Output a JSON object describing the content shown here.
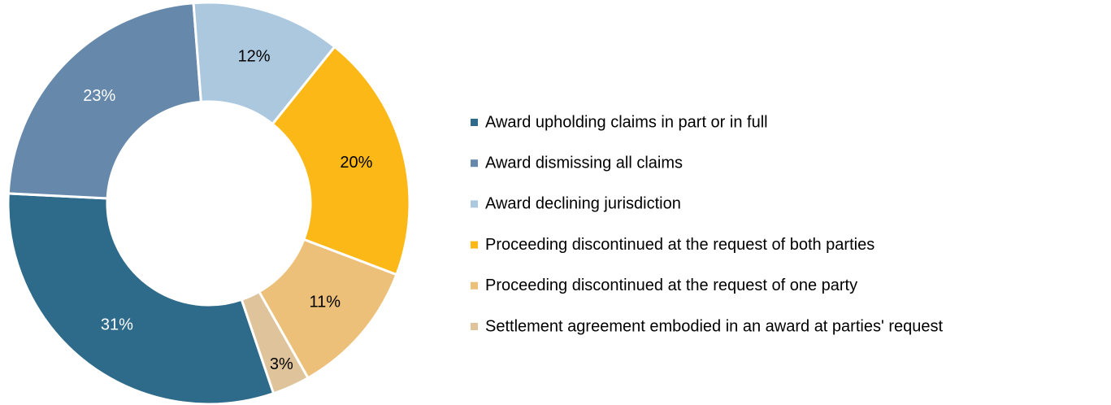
{
  "chart_data": {
    "type": "donut",
    "categories": [
      "Award upholding claims in part or in full",
      "Award dismissing all claims",
      "Award declining jurisdiction",
      "Proceeding discontinued at the request of both parties",
      "Proceeding discontinued at the request of one party",
      "Settlement agreement embodied in an award at parties' request"
    ],
    "values": [
      31,
      23,
      12,
      20,
      11,
      3
    ],
    "value_labels": [
      "31%",
      "23%",
      "12%",
      "20%",
      "11%",
      "3%"
    ],
    "colors": [
      "#2e6a8a",
      "#6588ab",
      "#abc8df",
      "#fbb817",
      "#ecc079",
      "#dfc49b"
    ],
    "label_colors": [
      "#ffffff",
      "#ffffff",
      "#000000",
      "#000000",
      "#000000",
      "#000000"
    ],
    "legend": "right"
  }
}
